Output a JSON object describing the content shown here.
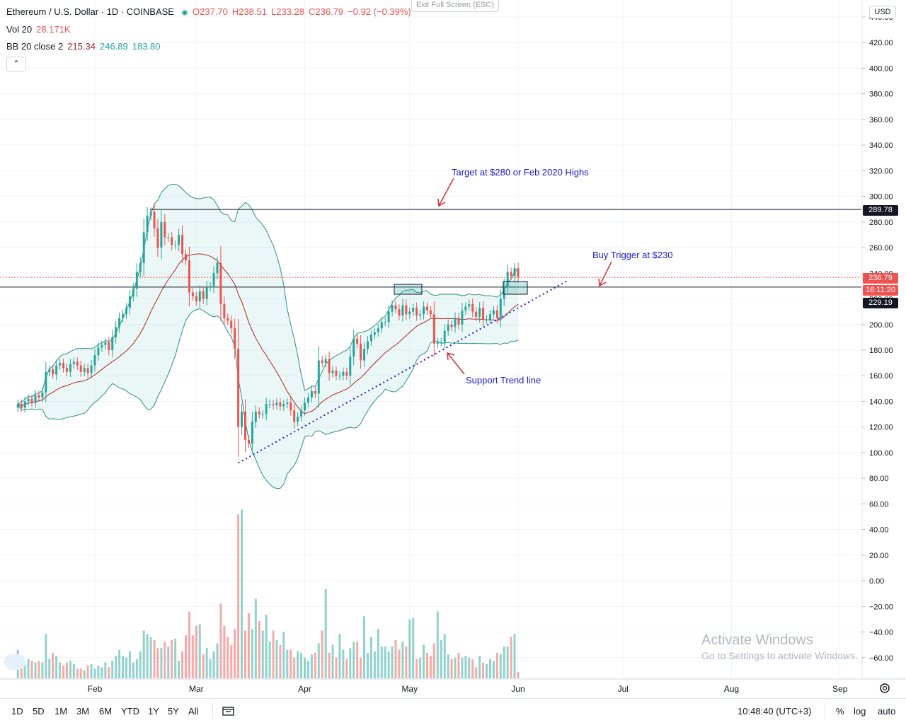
{
  "header": {
    "symbol": "Ethereum / U.S. Dollar · 1D · COINBASE",
    "ohlc": {
      "open": "O237.70",
      "high": "H238.51",
      "low": "L233.28",
      "close": "C236.79",
      "change": "−0.92 (−0.39%)"
    },
    "volume": {
      "label": "Vol 20",
      "value": "28.171K"
    },
    "bb": {
      "label": "BB 20 close 2",
      "basis": "215.34",
      "upper": "246.89",
      "lower": "183.80"
    },
    "collapse_label": "⌃",
    "exit_fullscreen": "Exit Full Screen (ESC)",
    "currency": "USD"
  },
  "annotations": {
    "target": "Target at $280 or Feb 2020 Highs",
    "buy_trigger": "Buy Trigger at $230",
    "support": "Support Trend line"
  },
  "price_tags": {
    "resistance": "289.78",
    "last": "236.79",
    "countdown": "16:11:20",
    "support": "229.19"
  },
  "bottom_bar": {
    "ranges": [
      "1D",
      "5D",
      "1M",
      "3M",
      "6M",
      "YTD",
      "1Y",
      "5Y",
      "All"
    ],
    "time": "10:48:40 (UTC+3)",
    "percent": "%",
    "log": "log",
    "auto": "auto"
  },
  "watermark": {
    "line1": "Activate Windows",
    "line2": "Go to Settings to activate Windows."
  },
  "colors": {
    "up": "#26a69a",
    "down": "#ef5350",
    "band": "#26a69a",
    "basis": "#a52a2a",
    "annot": "#1a1ad0",
    "arrow": "#d32f2f"
  },
  "chart_data": {
    "type": "candlestick",
    "y_axis": {
      "min": -60,
      "max": 440,
      "step": 20,
      "unit": "USD"
    },
    "y_ticks": [
      "440.00",
      "420.00",
      "400.00",
      "380.00",
      "360.00",
      "340.00",
      "320.00",
      "300.00",
      "280.00",
      "260.00",
      "240.00",
      "220.00",
      "200.00",
      "180.00",
      "160.00",
      "140.00",
      "120.00",
      "100.00",
      "80.00",
      "60.00",
      "40.00",
      "20.00",
      "0.00",
      "−20.00",
      "−40.00",
      "−60.00"
    ],
    "x_ticks": [
      "Feb",
      "Mar",
      "Apr",
      "May",
      "Jun",
      "Jul",
      "Aug",
      "Sep"
    ],
    "x_tick_days": [
      32,
      61,
      92,
      122,
      153,
      183,
      214,
      245
    ],
    "x_range_days": [
      10,
      255
    ],
    "start_day": 10,
    "horizontal_levels": [
      289.78,
      229.19
    ],
    "last_price": 236.79,
    "closes": [
      138,
      135,
      140,
      142,
      139,
      145,
      143,
      147,
      163,
      165,
      161,
      168,
      170,
      166,
      163,
      169,
      171,
      168,
      163,
      166,
      162,
      168,
      176,
      182,
      184,
      186,
      180,
      190,
      198,
      205,
      208,
      213,
      222,
      228,
      241,
      248,
      272,
      285,
      288,
      275,
      260,
      280,
      268,
      268,
      262,
      262,
      270,
      255,
      250,
      225,
      222,
      218,
      226,
      220,
      229,
      230,
      240,
      248,
      216,
      205,
      203,
      197,
      181,
      120,
      132,
      110,
      107,
      124,
      132,
      130,
      130,
      138,
      138,
      137,
      139,
      136,
      138,
      139,
      133,
      124,
      128,
      133,
      139,
      143,
      148,
      146,
      172,
      170,
      173,
      162,
      164,
      160,
      160,
      163,
      160,
      175,
      189,
      185,
      172,
      181,
      187,
      192,
      194,
      197,
      202,
      202,
      210,
      215,
      212,
      207,
      215,
      208,
      210,
      213,
      207,
      208,
      214,
      211,
      208,
      185,
      186,
      186,
      195,
      200,
      198,
      205,
      200,
      211,
      214,
      216,
      210,
      206,
      213,
      204,
      204,
      208,
      211,
      205,
      220,
      230,
      241,
      238,
      244,
      237
    ],
    "volumes": [
      18,
      10,
      8,
      12,
      11,
      10,
      11,
      10,
      28,
      12,
      16,
      14,
      10,
      8,
      10,
      11,
      9,
      6,
      6,
      5,
      8,
      9,
      6,
      8,
      7,
      10,
      7,
      11,
      14,
      18,
      14,
      13,
      17,
      10,
      12,
      17,
      30,
      28,
      26,
      24,
      19,
      19,
      23,
      20,
      24,
      25,
      11,
      17,
      27,
      42,
      27,
      33,
      34,
      15,
      19,
      12,
      17,
      22,
      47,
      33,
      26,
      21,
      31,
      103,
      106,
      30,
      41,
      31,
      50,
      36,
      30,
      40,
      23,
      30,
      24,
      21,
      29,
      18,
      18,
      13,
      17,
      16,
      13,
      11,
      15,
      16,
      22,
      30,
      56,
      16,
      21,
      13,
      28,
      18,
      12,
      19,
      23,
      23,
      13,
      39,
      16,
      26,
      17,
      31,
      20,
      20,
      17,
      20,
      24,
      18,
      23,
      20,
      37,
      38,
      12,
      13,
      21,
      16,
      14,
      22,
      42,
      24,
      28,
      15,
      12,
      13,
      16,
      13,
      14,
      13,
      12,
      7,
      14,
      10,
      9,
      12,
      11,
      16,
      15,
      20,
      20,
      26,
      28,
      4
    ]
  }
}
